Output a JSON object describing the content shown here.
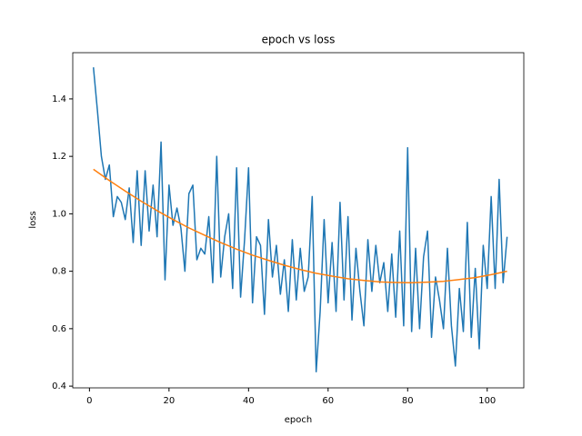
{
  "chart_data": {
    "type": "line",
    "title": "epoch vs loss",
    "x_label": "epoch",
    "y_label": "loss",
    "xlim": [
      -4.2,
      109.2
    ],
    "ylim": [
      0.394,
      1.561
    ],
    "xticks": [
      0,
      20,
      40,
      60,
      80,
      100
    ],
    "yticks": [
      0.4,
      0.6,
      0.8,
      {
        "value": 1,
        "label": "1.0"
      },
      1.2,
      1.4
    ],
    "series": [
      {
        "color": "#1f77b4",
        "x": [
          1,
          2,
          3,
          4,
          5,
          6,
          7,
          8,
          9,
          10,
          11,
          12,
          13,
          14,
          15,
          16,
          17,
          18,
          19,
          20,
          21,
          22,
          23,
          24,
          25,
          26,
          27,
          28,
          29,
          30,
          31,
          32,
          33,
          34,
          35,
          36,
          37,
          38,
          39,
          40,
          41,
          42,
          43,
          44,
          45,
          46,
          47,
          48,
          49,
          50,
          51,
          52,
          53,
          54,
          55,
          56,
          57,
          58,
          59,
          60,
          61,
          62,
          63,
          64,
          65,
          66,
          67,
          68,
          69,
          70,
          71,
          72,
          73,
          74,
          75,
          76,
          77,
          78,
          79,
          80,
          81,
          82,
          83,
          84,
          85,
          86,
          87,
          88,
          89,
          90,
          91,
          92,
          93,
          94,
          95,
          96,
          97,
          98,
          99,
          100,
          101,
          102,
          103,
          104,
          105
        ],
        "values": [
          1.51,
          1.36,
          1.2,
          1.12,
          1.17,
          0.99,
          1.06,
          1.04,
          0.98,
          1.09,
          0.9,
          1.15,
          0.89,
          1.15,
          0.94,
          1.1,
          0.92,
          1.25,
          0.77,
          1.1,
          0.96,
          1.02,
          0.95,
          0.8,
          1.07,
          1.1,
          0.84,
          0.88,
          0.86,
          0.99,
          0.76,
          1.2,
          0.78,
          0.92,
          1.0,
          0.74,
          1.16,
          0.71,
          0.91,
          1.16,
          0.69,
          0.92,
          0.89,
          0.65,
          0.98,
          0.78,
          0.89,
          0.72,
          0.84,
          0.66,
          0.91,
          0.7,
          0.88,
          0.73,
          0.78,
          1.06,
          0.45,
          0.66,
          0.98,
          0.69,
          0.9,
          0.66,
          1.04,
          0.7,
          0.99,
          0.63,
          0.88,
          0.73,
          0.61,
          0.91,
          0.73,
          0.89,
          0.76,
          0.83,
          0.66,
          0.86,
          0.64,
          0.94,
          0.61,
          1.23,
          0.59,
          0.88,
          0.6,
          0.85,
          0.94,
          0.57,
          0.78,
          0.7,
          0.6,
          0.88,
          0.61,
          0.47,
          0.74,
          0.59,
          0.97,
          0.57,
          0.81,
          0.53,
          0.89,
          0.74,
          1.06,
          0.74,
          1.12,
          0.76,
          0.92
        ]
      },
      {
        "color": "#ff7f0e",
        "x": [
          1,
          5,
          9,
          13,
          17,
          21,
          25,
          29,
          33,
          37,
          41,
          45,
          49,
          53,
          57,
          61,
          65,
          69,
          73,
          77,
          81,
          85,
          89,
          93,
          97,
          101,
          105
        ],
        "values": [
          1.155,
          1.116,
          1.079,
          1.044,
          1.011,
          0.98,
          0.951,
          0.925,
          0.9,
          0.877,
          0.856,
          0.838,
          0.821,
          0.806,
          0.793,
          0.783,
          0.774,
          0.768,
          0.763,
          0.761,
          0.76,
          0.762,
          0.765,
          0.771,
          0.778,
          0.788,
          0.8
        ]
      }
    ]
  }
}
